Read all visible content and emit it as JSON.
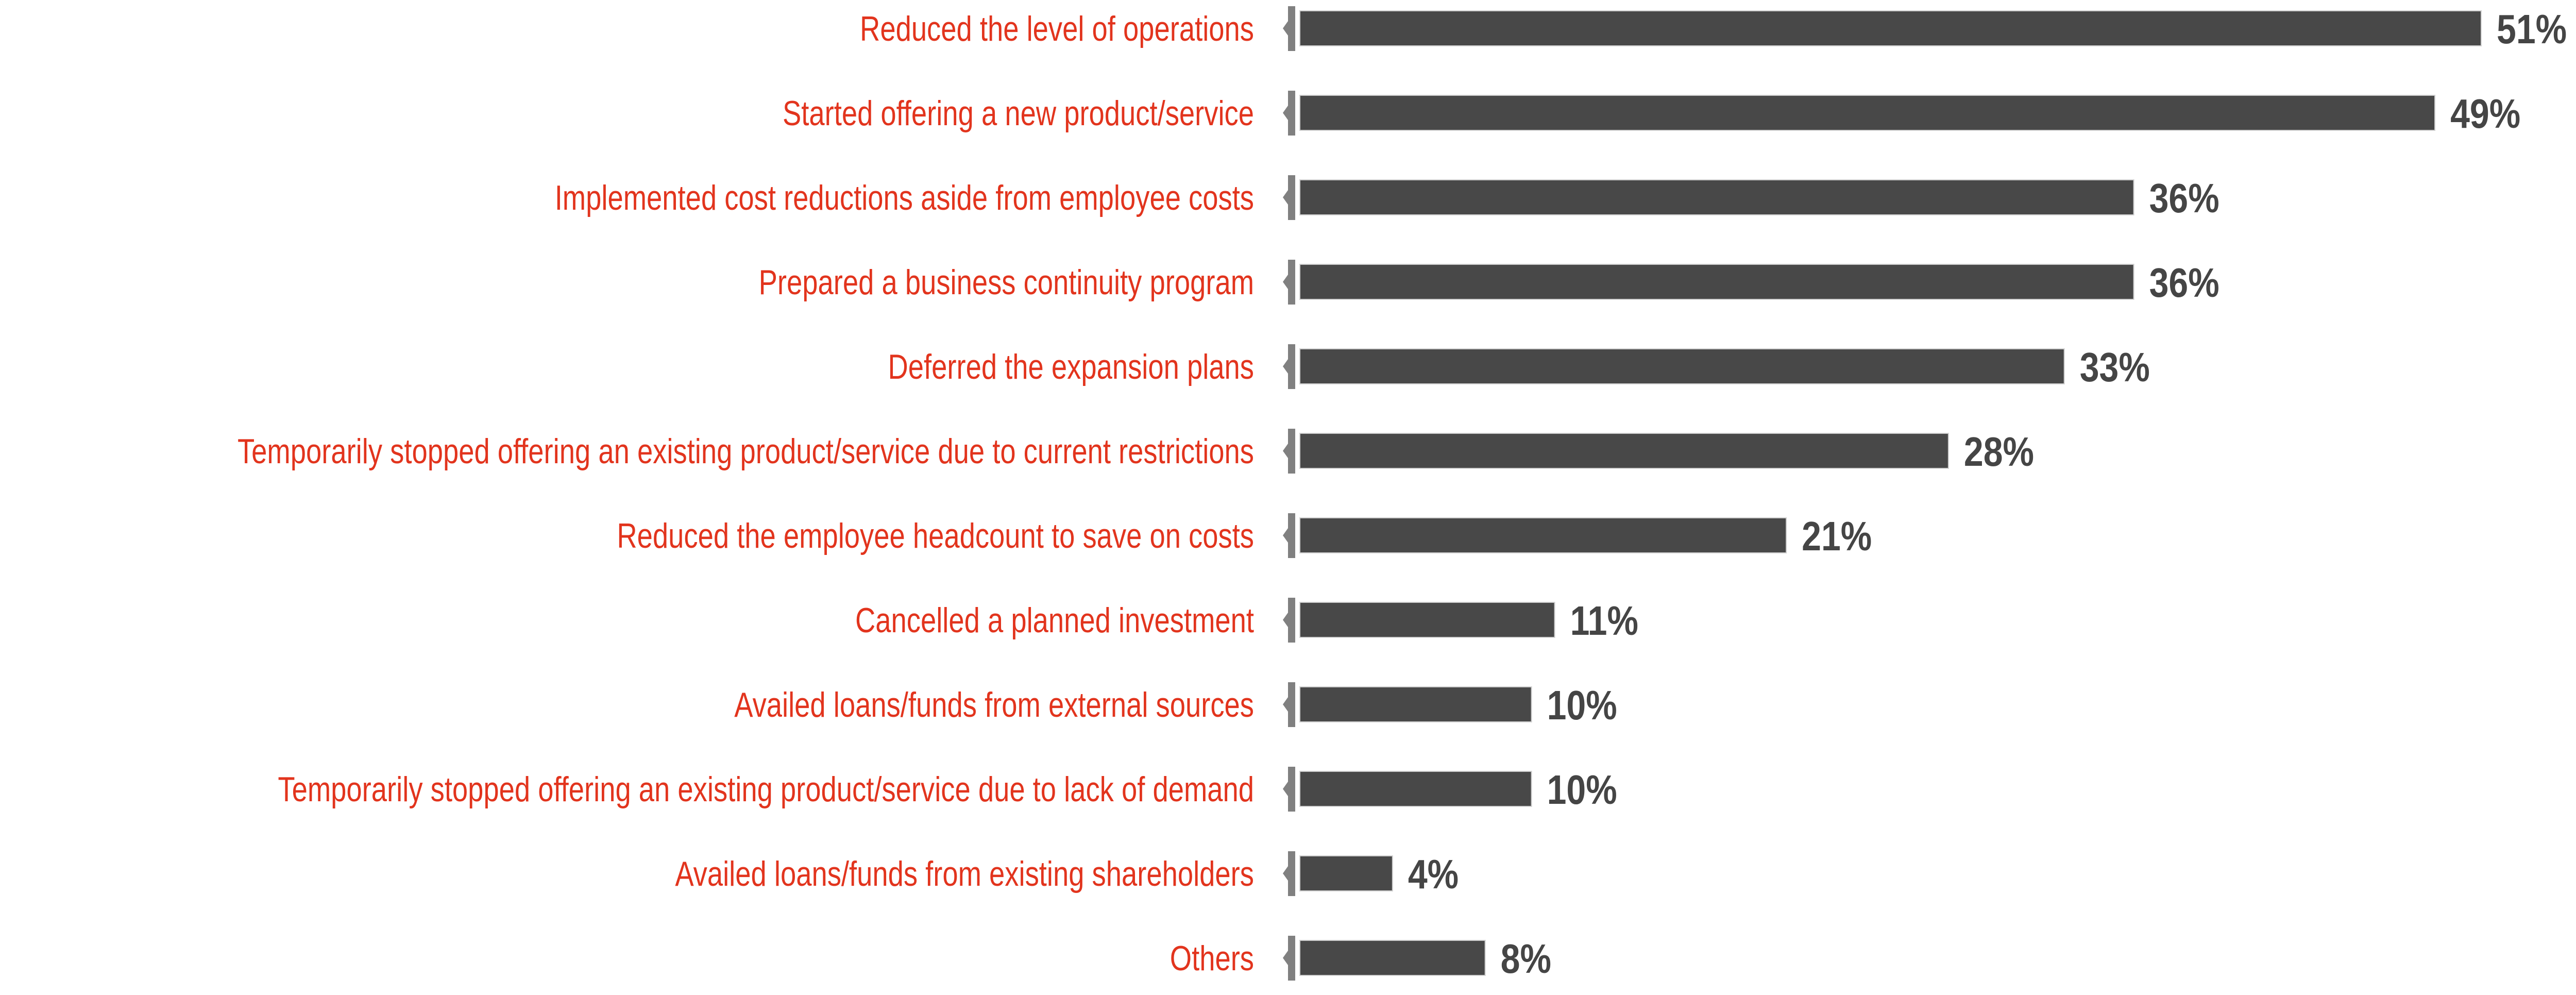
{
  "chart_data": {
    "type": "bar",
    "orientation": "horizontal",
    "categories": [
      "Reduced the level of operations",
      "Started offering a new product/service",
      "Implemented cost reductions aside from employee costs",
      "Prepared a business continuity program",
      "Deferred the expansion plans",
      "Temporarily stopped offering an existing product/service due to current restrictions",
      "Reduced the employee headcount to save on costs",
      "Cancelled a planned investment",
      "Availed loans/funds from external sources",
      "Temporarily stopped offering an existing product/service due to lack of demand",
      "Availed loans/funds from existing shareholders",
      "Others"
    ],
    "values": [
      51,
      49,
      36,
      36,
      33,
      28,
      21,
      11,
      10,
      10,
      4,
      8
    ],
    "value_labels": [
      "51%",
      "49%",
      "36%",
      "36%",
      "33%",
      "28%",
      "21%",
      "11%",
      "10%",
      "10%",
      "4%",
      "8%"
    ],
    "unit": "%",
    "title": "",
    "xlabel": "",
    "ylabel": "",
    "grid": false,
    "legend": "none",
    "colors": {
      "bar": "#484848",
      "category_text": "#e2341d",
      "value_text": "#454545",
      "axis_tick": "#808080"
    }
  }
}
